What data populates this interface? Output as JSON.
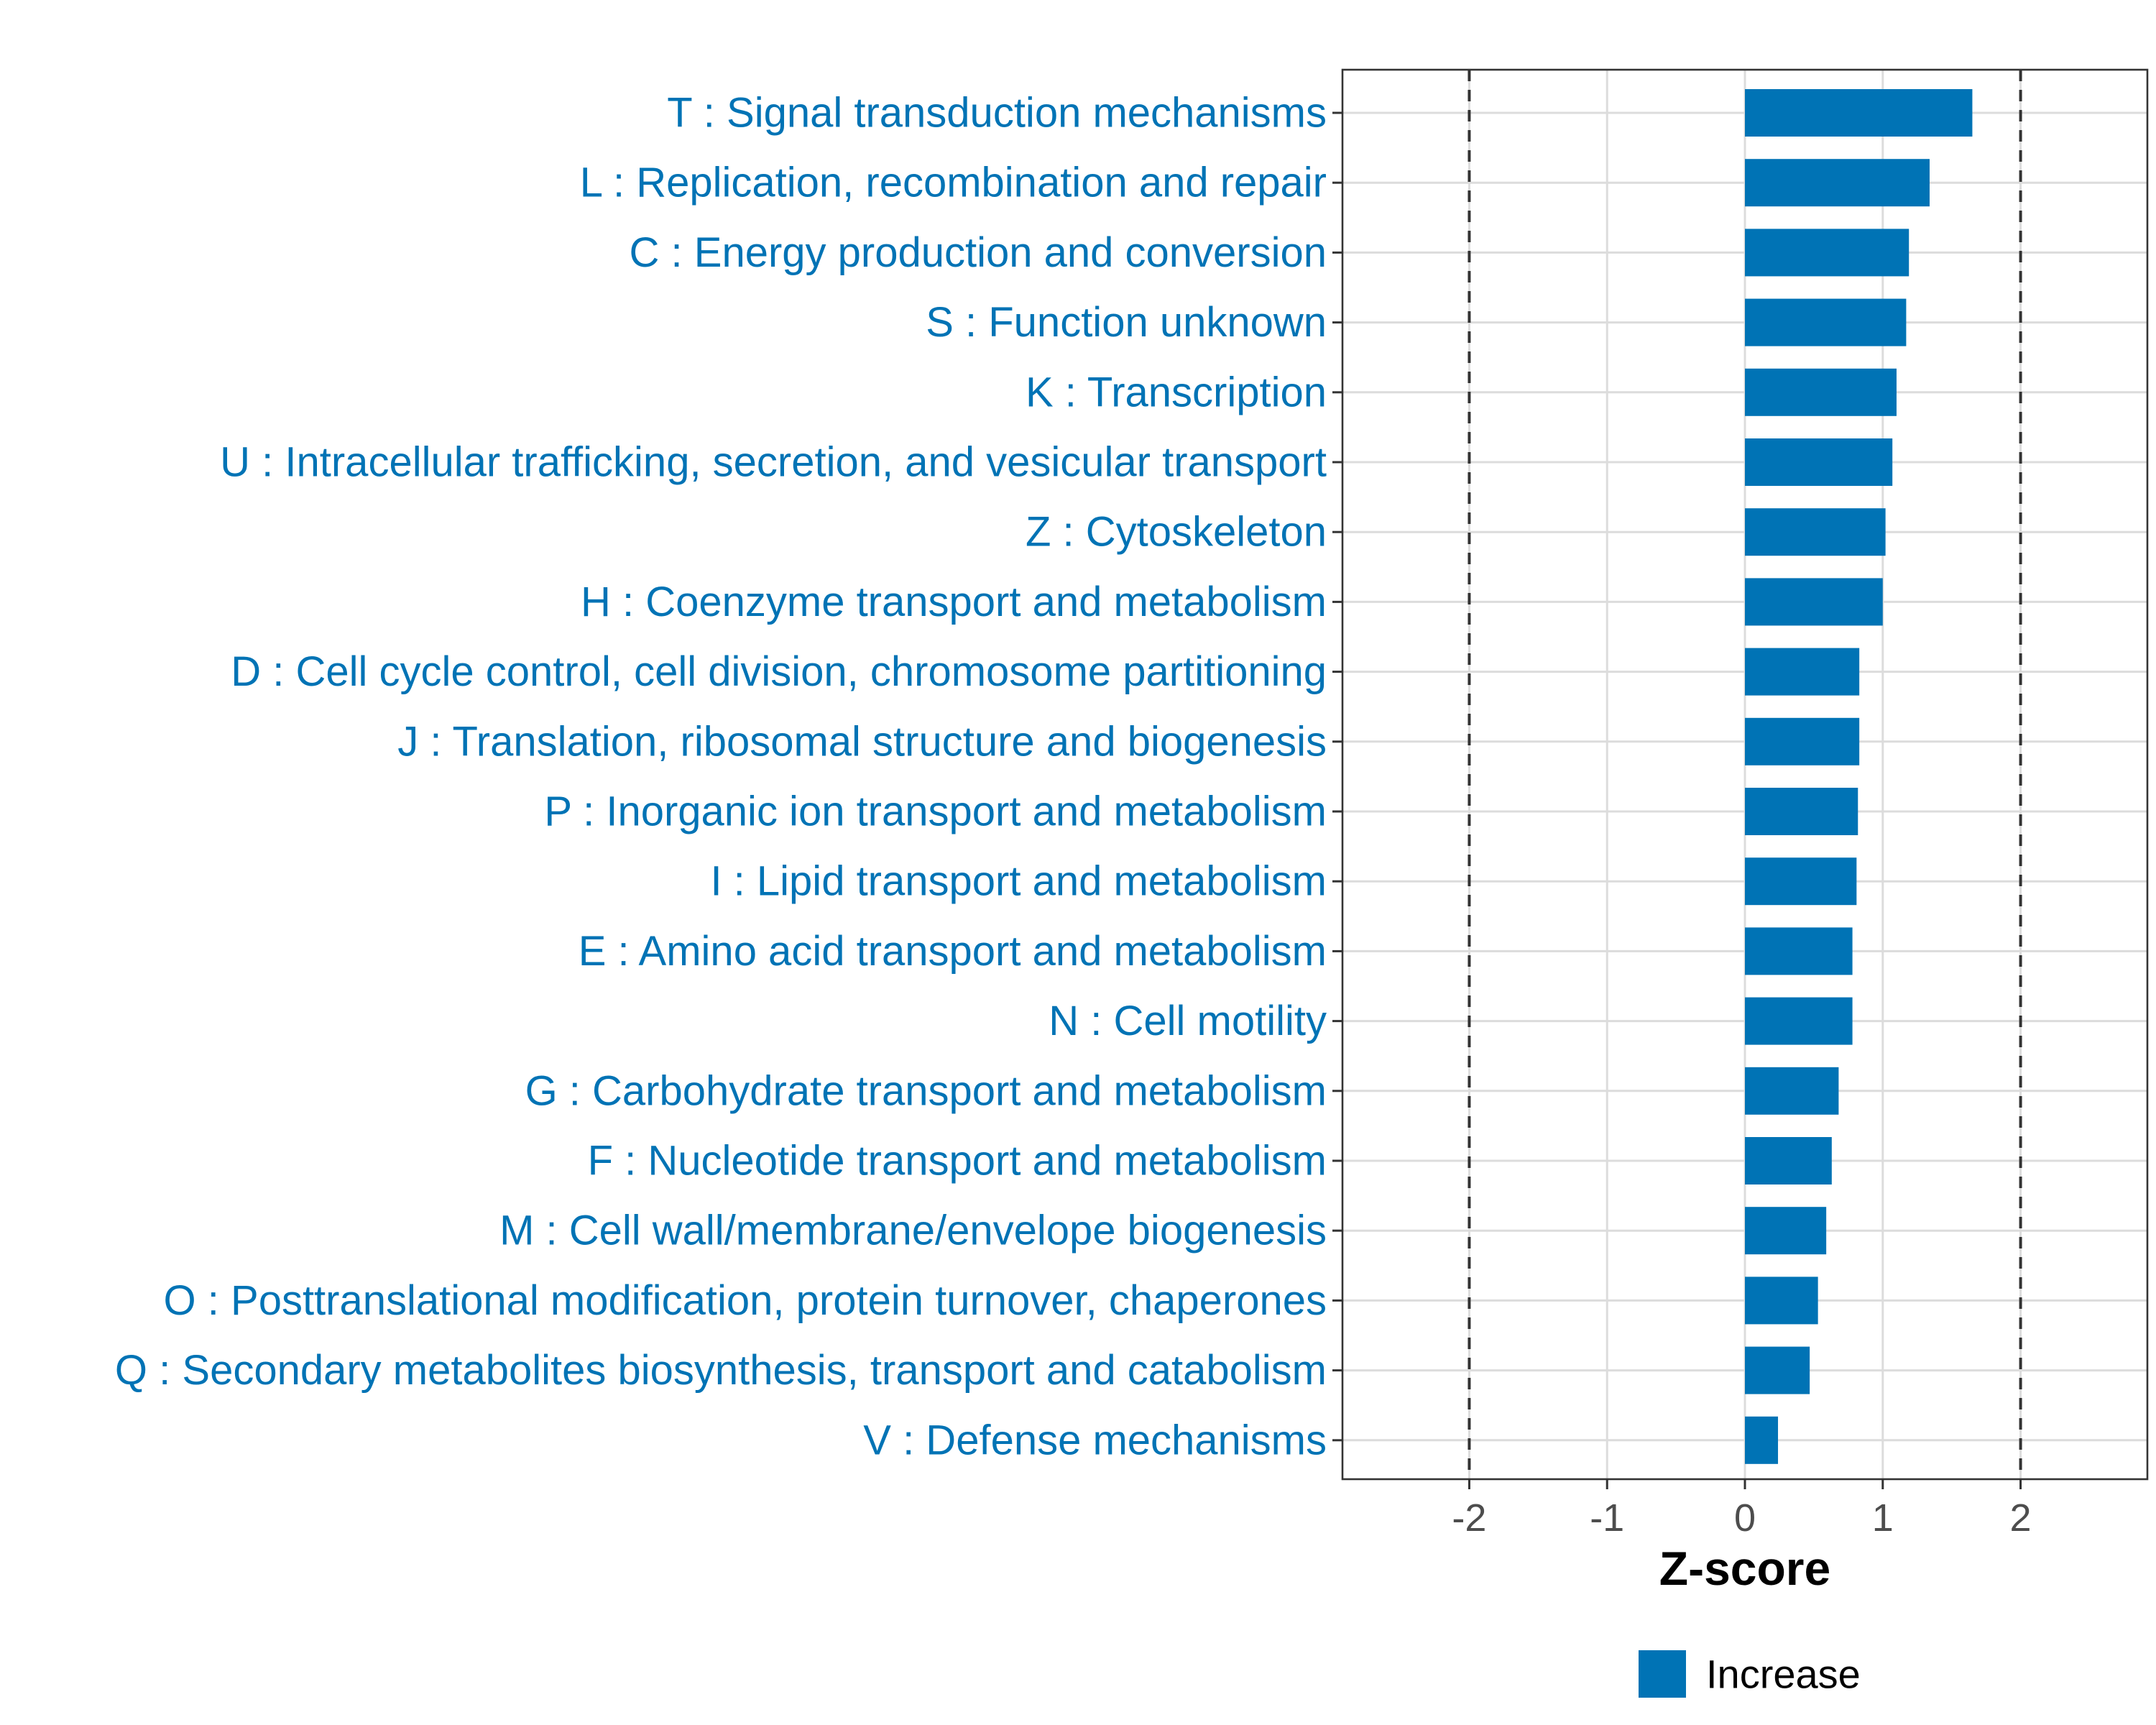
{
  "chart_data": {
    "type": "bar",
    "orientation": "horizontal",
    "title": "",
    "xlabel": "Z-score",
    "ylabel": "",
    "xlim": [
      -2.92,
      2.92
    ],
    "xticks": [
      -2,
      -1,
      0,
      1,
      2
    ],
    "xtick_labels": [
      "-2",
      "-1",
      "0",
      "1",
      "2"
    ],
    "reference_lines": [
      -2,
      2
    ],
    "grid": true,
    "legend_position": "bottom",
    "series": [
      {
        "name": "Increase",
        "color": "#0073b5",
        "values": [
          1.65,
          1.34,
          1.19,
          1.17,
          1.1,
          1.07,
          1.02,
          1.0,
          0.83,
          0.83,
          0.82,
          0.81,
          0.78,
          0.78,
          0.68,
          0.63,
          0.59,
          0.53,
          0.47,
          0.24
        ]
      }
    ],
    "categories": [
      "T : Signal transduction mechanisms",
      "L : Replication, recombination and repair",
      "C : Energy production and conversion",
      "S : Function unknown",
      "K : Transcription",
      "U : Intracellular trafficking, secretion, and vesicular transport",
      "Z : Cytoskeleton",
      "H : Coenzyme transport and metabolism",
      "D : Cell cycle control, cell division, chromosome partitioning",
      "J : Translation, ribosomal structure and biogenesis",
      "P : Inorganic ion transport and metabolism",
      "I : Lipid transport and metabolism",
      "E : Amino acid transport and metabolism",
      "N : Cell motility",
      "G : Carbohydrate transport and metabolism",
      "F : Nucleotide transport and metabolism",
      "M : Cell wall/membrane/envelope biogenesis",
      "O : Posttranslational modification, protein turnover, chaperones",
      "Q : Secondary metabolites biosynthesis, transport and catabolism",
      "V : Defense mechanisms"
    ],
    "label_color": "#0073b5"
  }
}
